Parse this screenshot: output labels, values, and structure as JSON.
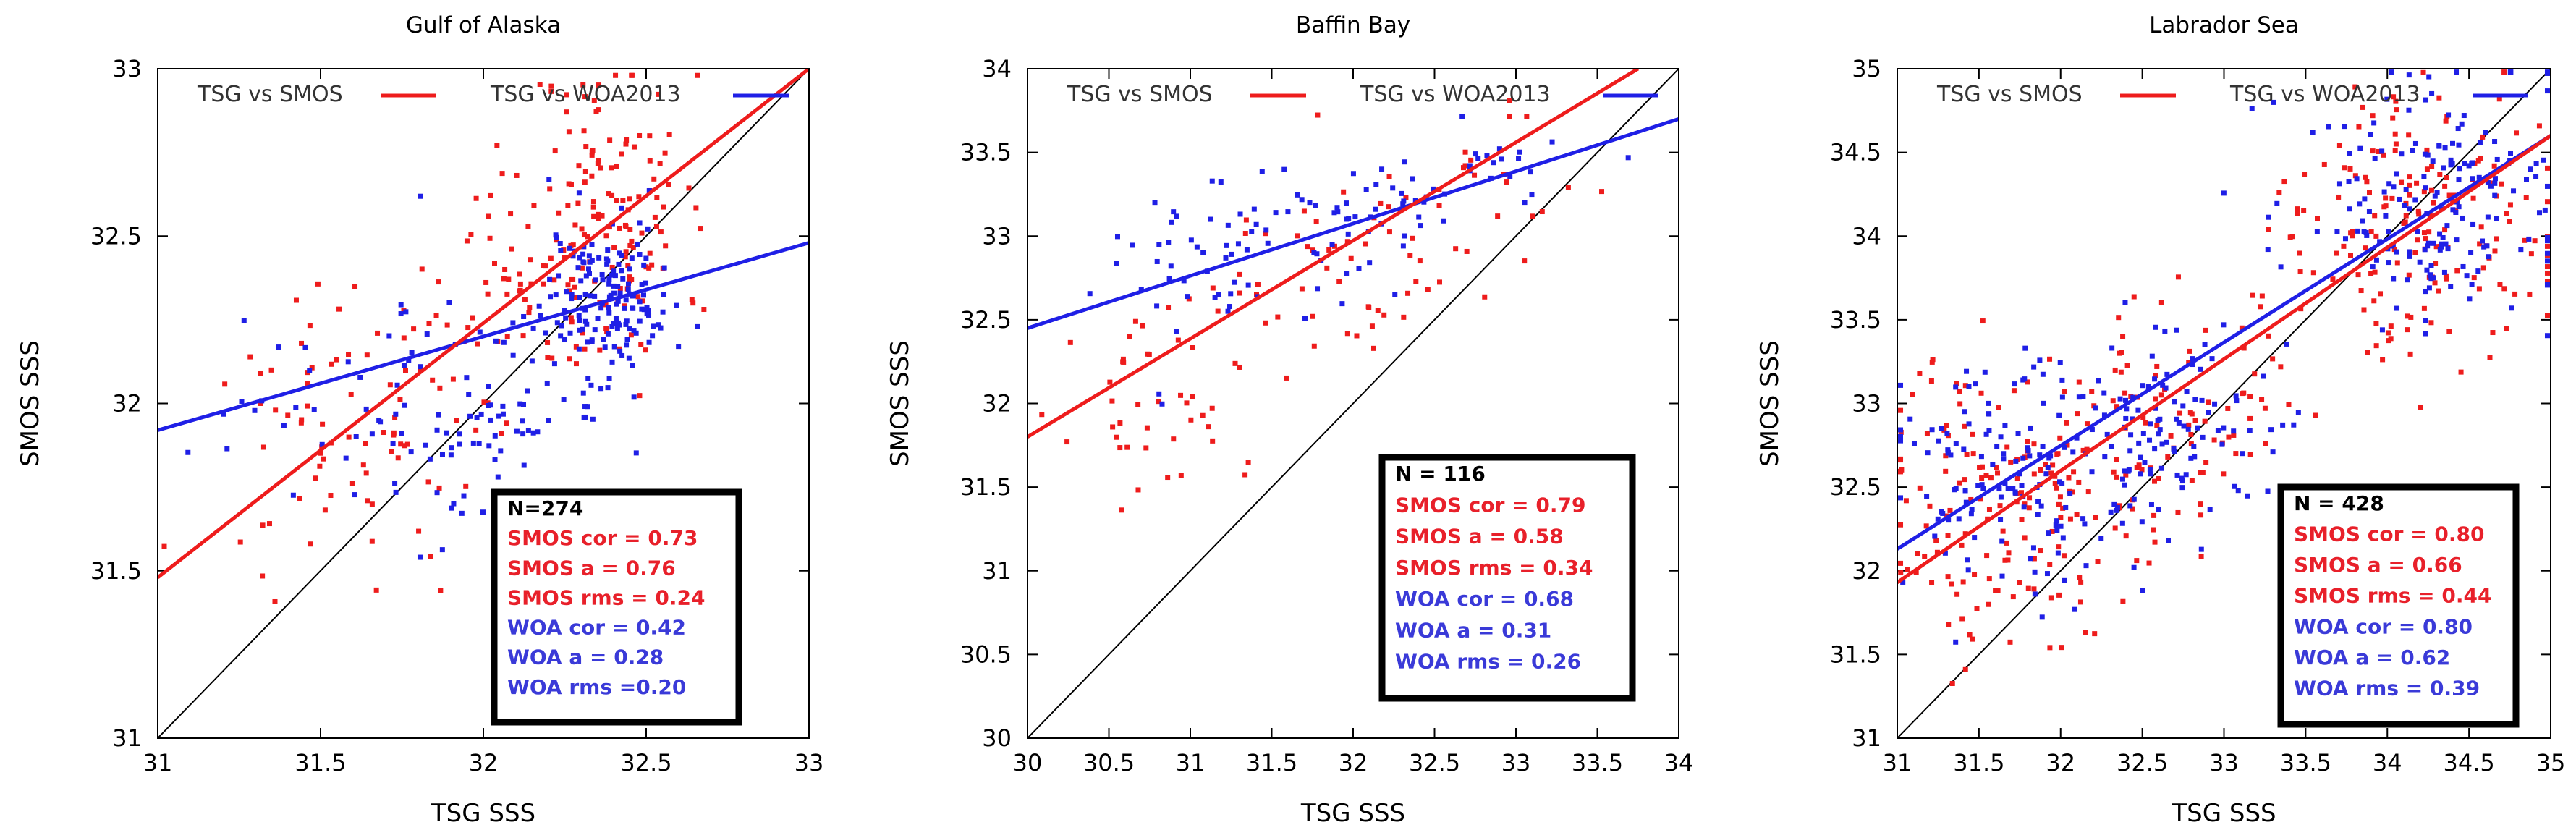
{
  "colors": {
    "smos": "#ee1c1c",
    "woa": "#1f1fe6",
    "stat_smos": "#e8202a",
    "stat_woa": "#3a3ad8",
    "axis": "#000000"
  },
  "chart_data": [
    {
      "type": "scatter",
      "title": "Gulf of Alaska",
      "xlabel": "TSG SSS",
      "ylabel": "SMOS SSS",
      "xlim": [
        31,
        33
      ],
      "ylim": [
        31,
        33
      ],
      "xticks": [
        "31",
        "31.5",
        "32",
        "32.5",
        "33"
      ],
      "yticks": [
        "31",
        "31.5",
        "32",
        "32.5",
        "33"
      ],
      "legend": [
        "TSG vs SMOS",
        "TSG vs WOA2013"
      ],
      "fit_smos": [
        [
          31,
          31.48
        ],
        [
          33,
          33.0
        ]
      ],
      "fit_woa": [
        [
          31,
          31.92
        ],
        [
          33,
          32.48
        ]
      ],
      "seed": 11,
      "smos_clusters": [
        {
          "cx": 32.38,
          "cy": 32.55,
          "sx": 0.12,
          "sy": 0.25,
          "n": 150
        },
        {
          "cx": 31.6,
          "cy": 31.95,
          "sx": 0.22,
          "sy": 0.22,
          "n": 80
        },
        {
          "cx": 32.05,
          "cy": 32.35,
          "sx": 0.12,
          "sy": 0.2,
          "n": 44
        }
      ],
      "woa_clusters": [
        {
          "cx": 32.38,
          "cy": 32.32,
          "sx": 0.1,
          "sy": 0.12,
          "n": 160
        },
        {
          "cx": 31.75,
          "cy": 32.0,
          "sx": 0.25,
          "sy": 0.2,
          "n": 70
        },
        {
          "cx": 32.05,
          "cy": 32.0,
          "sx": 0.15,
          "sy": 0.15,
          "n": 44
        }
      ],
      "stats": {
        "n": "N=274",
        "smos": [
          "SMOS cor = 0.73",
          "SMOS a = 0.76",
          "SMOS rms = 0.24"
        ],
        "woa": [
          "WOA cor = 0.42",
          "WOA a = 0.28",
          "WOA rms =0.20"
        ]
      }
    },
    {
      "type": "scatter",
      "title": "Baffin Bay",
      "xlabel": "TSG SSS",
      "ylabel": "SMOS SSS",
      "xlim": [
        30,
        34
      ],
      "ylim": [
        30,
        34
      ],
      "xticks": [
        "30",
        "30.5",
        "31",
        "31.5",
        "32",
        "32.5",
        "33",
        "33.5",
        "34"
      ],
      "yticks": [
        "30",
        "30.5",
        "31",
        "31.5",
        "32",
        "32.5",
        "33",
        "33.5",
        "34"
      ],
      "legend": [
        "TSG vs SMOS",
        "TSG vs WOA2013"
      ],
      "fit_smos": [
        [
          30,
          31.8
        ],
        [
          33.75,
          34.0
        ]
      ],
      "fit_woa": [
        [
          30,
          32.45
        ],
        [
          34,
          33.7
        ]
      ],
      "seed": 23,
      "smos_clusters": [
        {
          "cx": 30.9,
          "cy": 32.0,
          "sx": 0.3,
          "sy": 0.25,
          "n": 45
        },
        {
          "cx": 31.8,
          "cy": 32.8,
          "sx": 0.4,
          "sy": 0.3,
          "n": 50
        },
        {
          "cx": 32.8,
          "cy": 33.3,
          "sx": 0.3,
          "sy": 0.2,
          "n": 21
        }
      ],
      "woa_clusters": [
        {
          "cx": 31.0,
          "cy": 32.8,
          "sx": 0.3,
          "sy": 0.3,
          "n": 40
        },
        {
          "cx": 31.9,
          "cy": 33.1,
          "sx": 0.4,
          "sy": 0.2,
          "n": 55
        },
        {
          "cx": 32.9,
          "cy": 33.4,
          "sx": 0.35,
          "sy": 0.15,
          "n": 21
        }
      ],
      "stats": {
        "n": "N = 116",
        "smos": [
          "SMOS cor = 0.79",
          "SMOS a = 0.58",
          "SMOS rms = 0.34"
        ],
        "woa": [
          "WOA cor = 0.68",
          "WOA a = 0.31",
          "WOA rms = 0.26"
        ]
      }
    },
    {
      "type": "scatter",
      "title": "Labrador Sea",
      "xlabel": "TSG SSS",
      "ylabel": "SMOS SSS",
      "xlim": [
        31,
        35
      ],
      "ylim": [
        31,
        35
      ],
      "xticks": [
        "31",
        "31.5",
        "32",
        "32.5",
        "33",
        "33.5",
        "34",
        "34.5",
        "35"
      ],
      "yticks": [
        "31",
        "31.5",
        "32",
        "32.5",
        "33",
        "33.5",
        "34",
        "34.5",
        "35"
      ],
      "legend": [
        "TSG vs SMOS",
        "TSG vs WOA2013"
      ],
      "fit_smos": [
        [
          31,
          31.93
        ],
        [
          35,
          34.6
        ]
      ],
      "fit_woa": [
        [
          31,
          32.13
        ],
        [
          35,
          34.6
        ]
      ],
      "seed": 37,
      "smos_clusters": [
        {
          "cx": 31.6,
          "cy": 32.4,
          "sx": 0.35,
          "sy": 0.45,
          "n": 150
        },
        {
          "cx": 32.6,
          "cy": 32.9,
          "sx": 0.35,
          "sy": 0.4,
          "n": 100
        },
        {
          "cx": 34.2,
          "cy": 34.1,
          "sx": 0.45,
          "sy": 0.4,
          "n": 178
        }
      ],
      "woa_clusters": [
        {
          "cx": 31.8,
          "cy": 32.6,
          "sx": 0.4,
          "sy": 0.35,
          "n": 150
        },
        {
          "cx": 32.7,
          "cy": 32.8,
          "sx": 0.35,
          "sy": 0.35,
          "n": 100
        },
        {
          "cx": 34.3,
          "cy": 34.2,
          "sx": 0.4,
          "sy": 0.35,
          "n": 178
        }
      ],
      "stats": {
        "n": "N = 428",
        "smos": [
          "SMOS cor = 0.80",
          "SMOS a = 0.66",
          "SMOS rms = 0.44"
        ],
        "woa": [
          "WOA cor = 0.80",
          "WOA a = 0.62",
          "WOA rms = 0.39"
        ]
      }
    }
  ]
}
